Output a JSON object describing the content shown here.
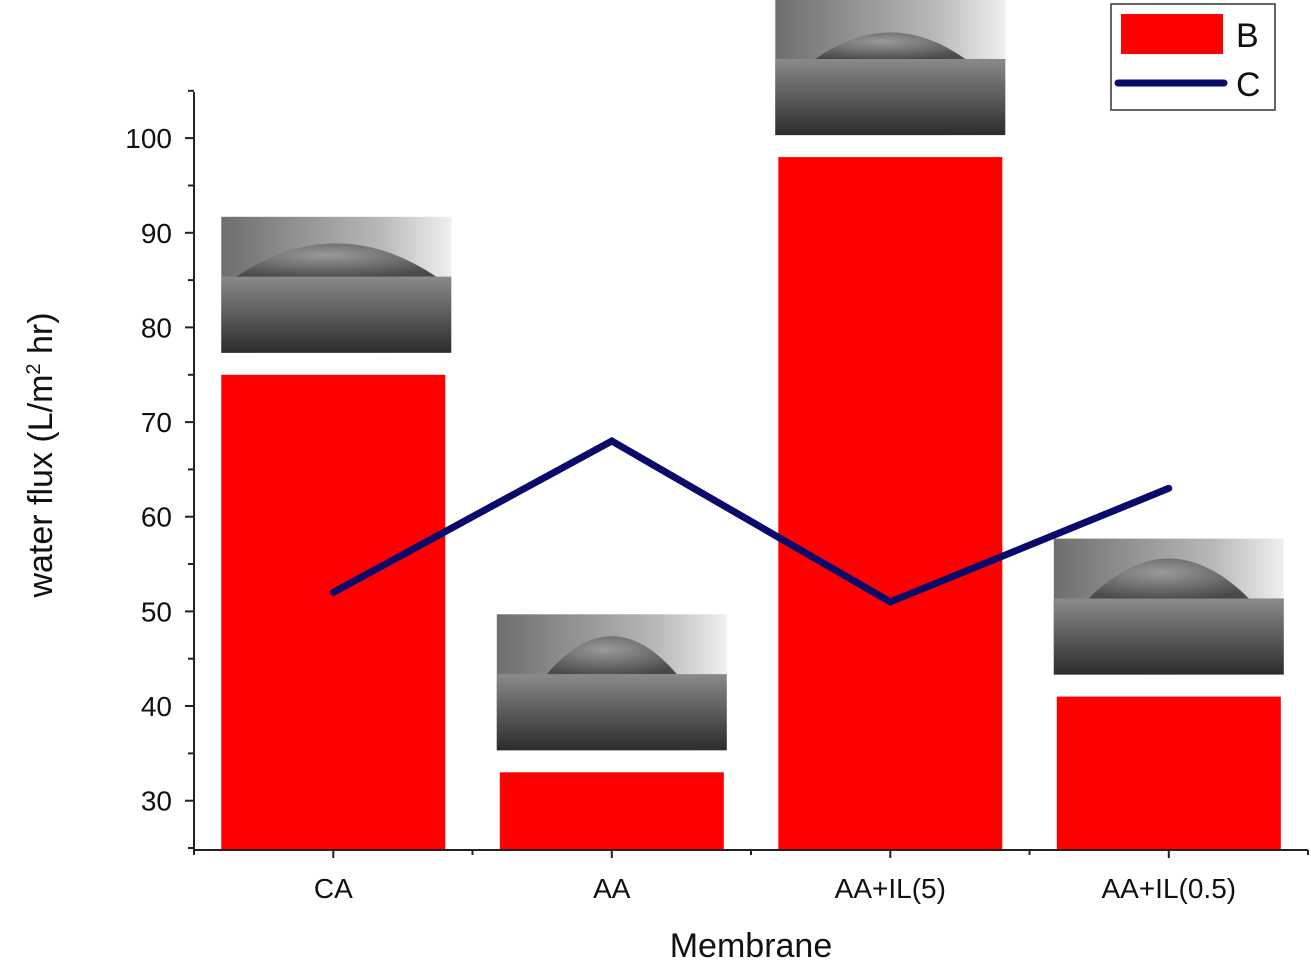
{
  "chart_data": {
    "type": "bar",
    "categories": [
      "CA",
      "AA",
      "AA+IL(5)",
      "AA+IL(0.5)"
    ],
    "series": [
      {
        "name": "B",
        "type": "bar",
        "color": "#ff0000",
        "values": [
          75,
          33,
          98,
          41
        ]
      },
      {
        "name": "C",
        "type": "line",
        "color": "#0a0a6a",
        "values": [
          52,
          68,
          51,
          63
        ]
      }
    ],
    "xlabel": "Membrane",
    "ylabel_parts": {
      "before": "water flux (L/m",
      "sup": "2",
      "after": " hr)"
    },
    "ylim": [
      25,
      105
    ],
    "yticks": [
      30,
      40,
      50,
      60,
      70,
      80,
      90,
      100
    ],
    "legend_position": "top-right",
    "grid": false,
    "insets": [
      "contact-angle droplet image",
      "contact-angle droplet image",
      "contact-angle droplet image",
      "contact-angle droplet image"
    ]
  }
}
